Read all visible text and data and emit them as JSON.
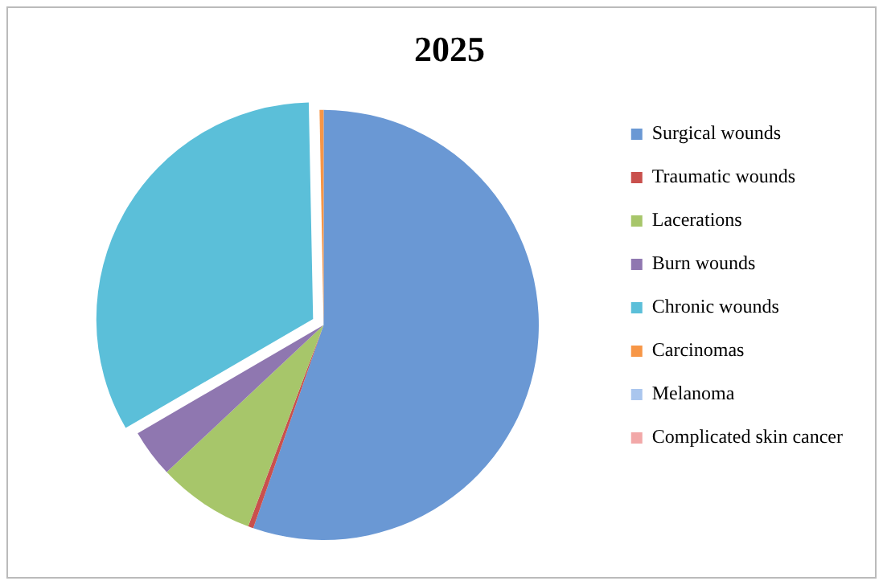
{
  "chart_data": {
    "type": "pie",
    "title": "2025",
    "categories": [
      "Surgical wounds",
      "Traumatic wounds",
      "Lacerations",
      "Burn wounds",
      "Chronic wounds",
      "Carcinomas",
      "Melanoma",
      "Complicated skin cancer"
    ],
    "values": [
      55.3,
      0.4,
      7.3,
      3.6,
      33.1,
      0.3,
      0,
      0
    ],
    "colors": [
      "#6a98d4",
      "#c9504d",
      "#a7c66a",
      "#8f77b0",
      "#5bbfd9",
      "#f79646",
      "#aac6ee",
      "#f2a8a8"
    ],
    "legend": "right"
  }
}
